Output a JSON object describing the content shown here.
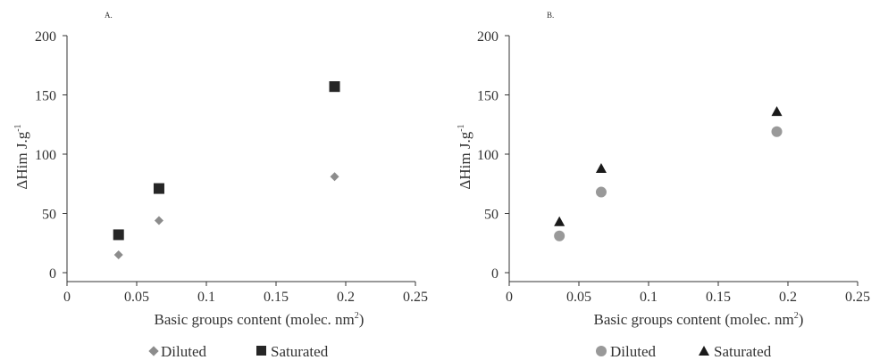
{
  "chart_data": [
    {
      "type": "scatter",
      "panel_label": "A.",
      "xlabel": "Basic groups content (molec. nm",
      "xlabel_sup": "2",
      "xlabel_end": ")",
      "ylabel": "ΔHim J.g",
      "ylabel_sup": "-1",
      "xlim": [
        0,
        0.25
      ],
      "ylim": [
        0,
        200
      ],
      "xticks": [
        "0",
        "0.05",
        "0.1",
        "0.15",
        "0.2",
        "0.25"
      ],
      "yticks": [
        "0",
        "50",
        "100",
        "150",
        "200"
      ],
      "legend_position": "bottom",
      "series": [
        {
          "name": "Diluted",
          "marker": "diamond",
          "color": "#8c8c8c",
          "points": [
            {
              "x": 0.037,
              "y": 15
            },
            {
              "x": 0.066,
              "y": 44
            },
            {
              "x": 0.192,
              "y": 81
            }
          ]
        },
        {
          "name": "Saturated",
          "marker": "square",
          "color": "#262626",
          "points": [
            {
              "x": 0.037,
              "y": 32
            },
            {
              "x": 0.066,
              "y": 71
            },
            {
              "x": 0.192,
              "y": 157
            }
          ]
        }
      ]
    },
    {
      "type": "scatter",
      "panel_label": "B.",
      "xlabel": "Basic groups content (molec. nm",
      "xlabel_sup": "2",
      "xlabel_end": ")",
      "ylabel": "ΔHim J.g",
      "ylabel_sup": "-1",
      "xlim": [
        0,
        0.25
      ],
      "ylim": [
        0,
        200
      ],
      "xticks": [
        "0",
        "0.05",
        "0.1",
        "0.15",
        "0.2",
        "0.25"
      ],
      "yticks": [
        "0",
        "50",
        "100",
        "150",
        "200"
      ],
      "legend_position": "bottom",
      "series": [
        {
          "name": "Diluted",
          "marker": "circle",
          "color": "#999999",
          "points": [
            {
              "x": 0.036,
              "y": 31
            },
            {
              "x": 0.066,
              "y": 68
            },
            {
              "x": 0.192,
              "y": 119
            }
          ]
        },
        {
          "name": "Saturated",
          "marker": "triangle",
          "color": "#1a1a1a",
          "points": [
            {
              "x": 0.036,
              "y": 43
            },
            {
              "x": 0.066,
              "y": 88
            },
            {
              "x": 0.192,
              "y": 136
            }
          ]
        }
      ]
    }
  ]
}
